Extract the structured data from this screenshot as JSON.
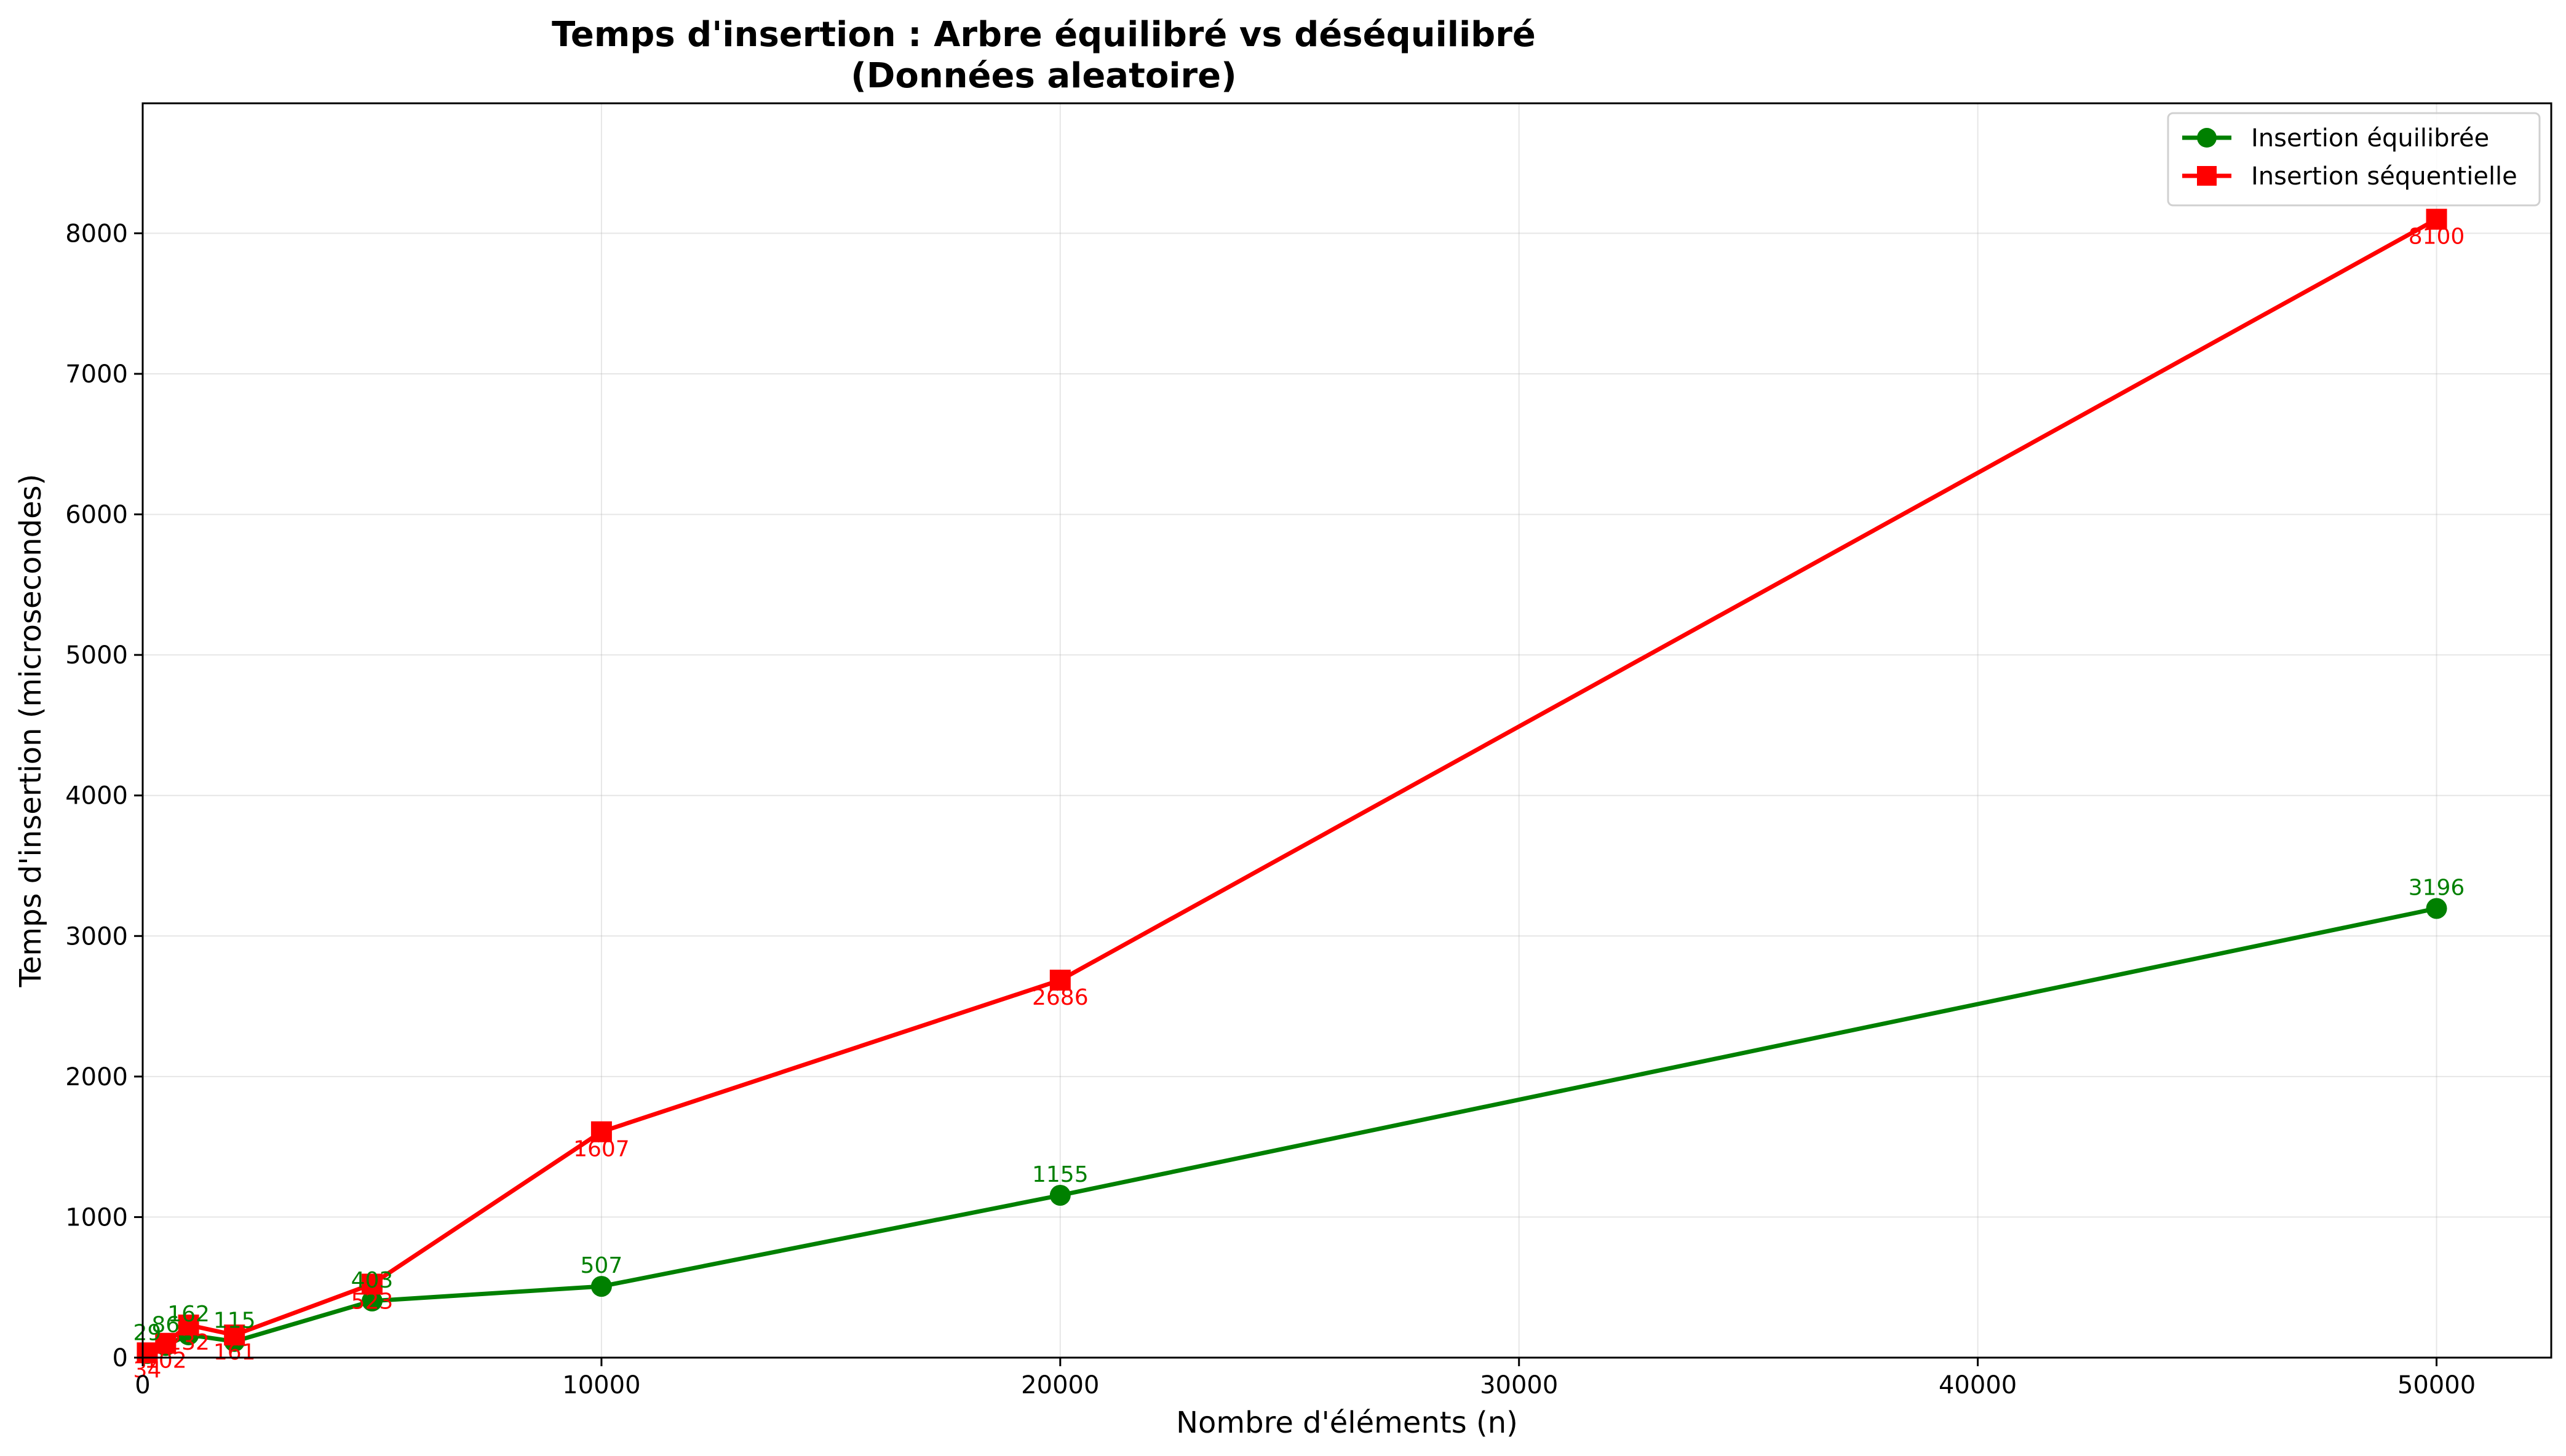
{
  "chart_data": {
    "type": "line",
    "title": "Temps d'insertion : Arbre équilibré vs déséquilibré",
    "subtitle": "(Données aleatoire)",
    "xlabel": "Nombre d'éléments (n)",
    "ylabel": "Temps d'insertion (microsecondes)",
    "xlim": [
      0,
      52500
    ],
    "ylim": [
      0,
      8925
    ],
    "xticks": [
      0,
      10000,
      20000,
      30000,
      40000,
      50000
    ],
    "yticks": [
      0,
      1000,
      2000,
      3000,
      4000,
      5000,
      6000,
      7000,
      8000
    ],
    "grid": true,
    "legend_position": "top-right",
    "x": [
      100,
      500,
      1000,
      2000,
      5000,
      10000,
      20000,
      50000
    ],
    "series": [
      {
        "name": "Insertion équilibrée",
        "color": "#008000",
        "marker": "circle",
        "values": [
          29,
          86,
          162,
          115,
          403,
          507,
          1155,
          3196
        ],
        "labels": [
          "29",
          "86",
          "162",
          "115",
          "403",
          "507",
          "1155",
          "3196"
        ]
      },
      {
        "name": "Insertion séquentielle",
        "color": "#ff0000",
        "marker": "square",
        "values": [
          34,
          102,
          232,
          161,
          523,
          1607,
          2686,
          8100
        ],
        "labels": [
          "34",
          "102",
          "232",
          "161",
          "523",
          "1607",
          "2686",
          "8100"
        ]
      }
    ]
  }
}
